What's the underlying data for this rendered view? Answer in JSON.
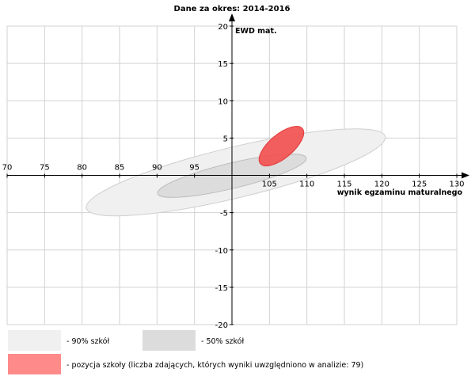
{
  "chart_data": {
    "type": "area",
    "title": "Dane za okres: 2014-2016",
    "xlabel": "wynik egzaminu maturalnego",
    "ylabel": "EWD mat.",
    "xlim": [
      70,
      130
    ],
    "ylim": [
      -20,
      20
    ],
    "x_ticks": [
      70,
      75,
      80,
      85,
      90,
      95,
      100,
      105,
      110,
      115,
      120,
      125,
      130
    ],
    "x_tick_labels": [
      "70",
      "75",
      "80",
      "85",
      "90",
      "95",
      "",
      "105",
      "110",
      "115",
      "120",
      "125",
      "130"
    ],
    "y_ticks": [
      -20,
      -15,
      -10,
      -5,
      0,
      5,
      10,
      15,
      20
    ],
    "y_tick_labels": [
      "-20",
      "-15",
      "-10",
      "-5",
      "",
      "5",
      "10",
      "15",
      "20"
    ],
    "grid": true,
    "series": [
      {
        "name": "- 90% szkół",
        "color": "#f0f0f0",
        "stroke": "#cfcfcf",
        "center": [
          100.5,
          0.4
        ],
        "semi_axes": [
          20.5,
          3.4
        ],
        "angle_deg": 13.5
      },
      {
        "name": "- 50% szkół",
        "color": "#dcdcdc",
        "stroke": "#bdbdbd",
        "center": [
          100.0,
          -0.05
        ],
        "semi_axes": [
          10.2,
          1.7
        ],
        "angle_deg": 13.5
      },
      {
        "name": "- pozycja szkoły (liczba zdających, których wyniki uwzględniono w analizie: 79)",
        "color": "#f25050",
        "stroke": "#e23a3a",
        "center": [
          106.6,
          3.92
        ],
        "semi_axes": [
          3.65,
          1.6
        ],
        "angle_deg": 40
      }
    ],
    "legend": [
      {
        "label": "- 90% szkół",
        "swatch": "#f0f0f0"
      },
      {
        "label": "- 50% szkół",
        "swatch": "#dcdcdc"
      },
      {
        "label": "- pozycja szkoły (liczba zdających, których wyniki uwzględniono w analizie: 79)",
        "swatch": "#ff8a8a"
      }
    ]
  }
}
